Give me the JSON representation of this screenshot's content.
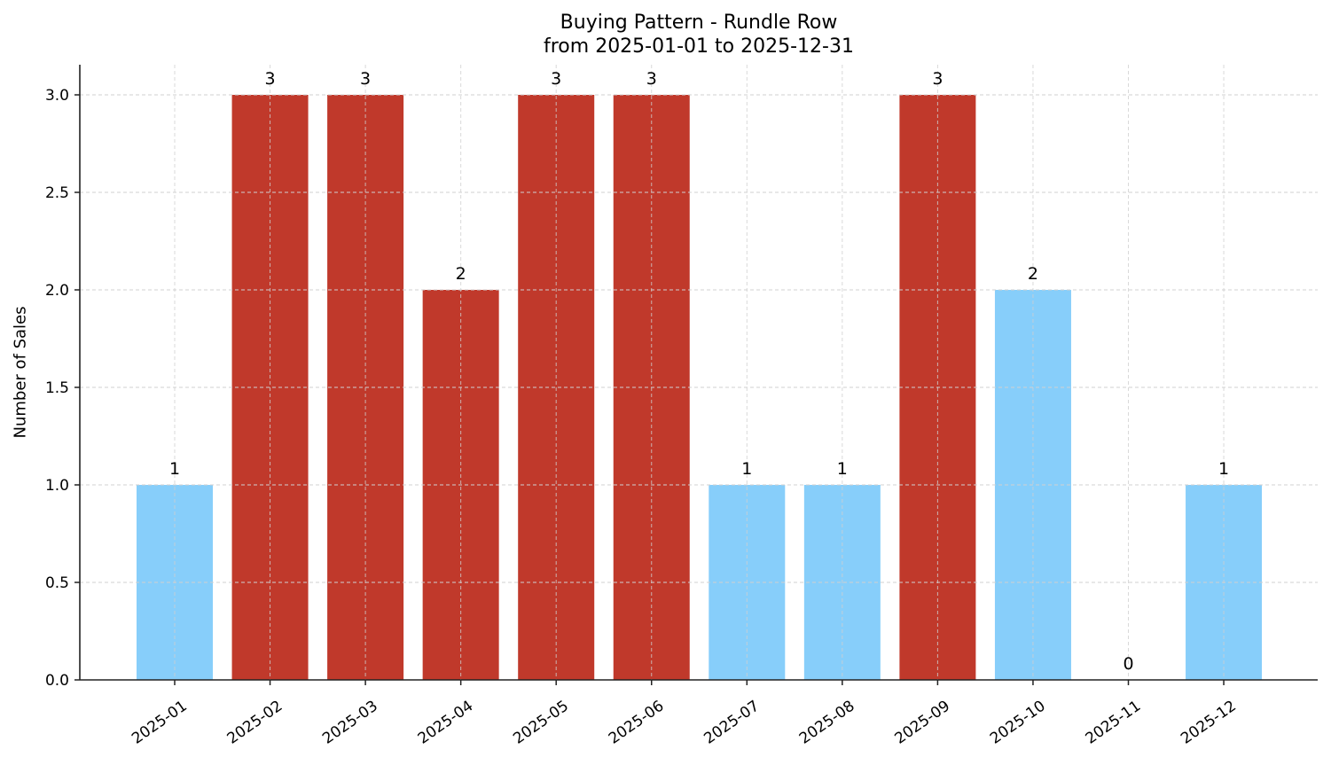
{
  "chart_data": {
    "type": "bar",
    "title": "Buying Pattern - Rundle Row",
    "subtitle": "from 2025-01-01 to 2025-12-31",
    "xlabel": "",
    "ylabel": "Number of Sales",
    "ylim": [
      0,
      3.15
    ],
    "yticks": [
      "0.0",
      "0.5",
      "1.0",
      "1.5",
      "2.0",
      "2.5",
      "3.0"
    ],
    "grid": true,
    "legend": null,
    "categories": [
      "2025-01",
      "2025-02",
      "2025-03",
      "2025-04",
      "2025-05",
      "2025-06",
      "2025-07",
      "2025-08",
      "2025-09",
      "2025-10",
      "2025-11",
      "2025-12"
    ],
    "values": [
      1,
      3,
      3,
      2,
      3,
      3,
      1,
      1,
      3,
      2,
      0,
      1
    ],
    "data_labels": [
      "1",
      "3",
      "3",
      "2",
      "3",
      "3",
      "1",
      "1",
      "3",
      "2",
      "0",
      "1"
    ],
    "colors": {
      "high": "#c0392b",
      "low": "#87cefa"
    },
    "bar_colors": [
      "#87cefa",
      "#c0392b",
      "#c0392b",
      "#c0392b",
      "#c0392b",
      "#c0392b",
      "#87cefa",
      "#87cefa",
      "#c0392b",
      "#87cefa",
      "#87cefa",
      "#87cefa"
    ]
  }
}
